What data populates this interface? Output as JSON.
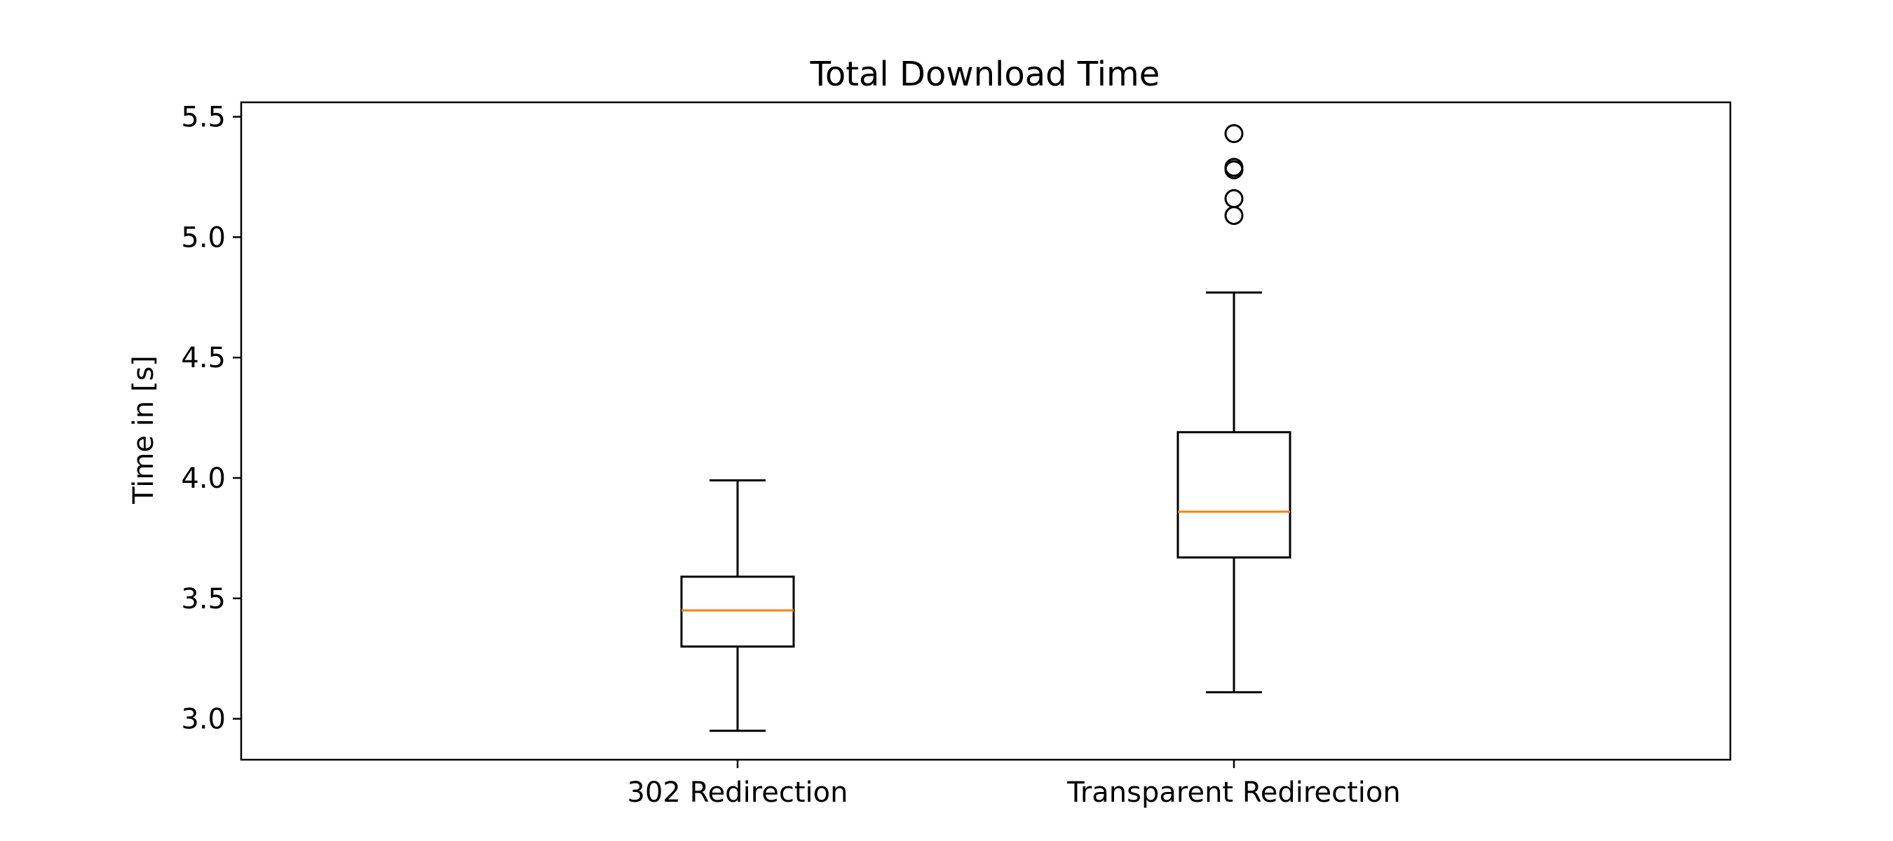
{
  "chart_data": {
    "type": "box",
    "title": "Total Download Time",
    "xlabel": "",
    "ylabel": "Time in [s]",
    "categories": [
      "302 Redirection",
      "Transparent Redirection"
    ],
    "ylim": [
      2.83,
      5.56
    ],
    "yticks": [
      "3.0",
      "3.5",
      "4.0",
      "4.5",
      "5.0",
      "5.5"
    ],
    "grid": false,
    "box_color": "#000000",
    "median_color": "#ff7f0e",
    "boxes": [
      {
        "name": "302 Redirection",
        "whisker_low": 2.95,
        "q1": 3.3,
        "median": 3.45,
        "q3": 3.59,
        "whisker_high": 3.99,
        "outliers": []
      },
      {
        "name": "Transparent Redirection",
        "whisker_low": 3.11,
        "q1": 3.67,
        "median": 3.86,
        "q3": 4.19,
        "whisker_high": 4.77,
        "outliers": [
          5.09,
          5.16,
          5.28,
          5.29,
          5.43
        ]
      }
    ]
  }
}
